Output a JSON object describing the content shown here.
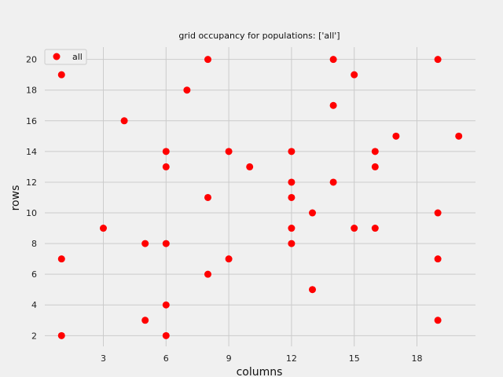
{
  "chart_data": {
    "type": "scatter",
    "title": "grid occupancy for populations: ['all']",
    "xlabel": "columns",
    "ylabel": "rows",
    "xlim": [
      0.2,
      20.8
    ],
    "ylim": [
      1.3,
      20.8
    ],
    "xticks": [
      3,
      6,
      9,
      12,
      15,
      18
    ],
    "yticks": [
      2,
      4,
      6,
      8,
      10,
      12,
      14,
      16,
      18,
      20
    ],
    "grid": true,
    "legend_position": "top-left",
    "series": [
      {
        "name": "all",
        "color": "#ff0000",
        "points": [
          [
            1,
            19
          ],
          [
            8,
            20
          ],
          [
            14,
            20
          ],
          [
            19,
            20
          ],
          [
            15,
            19
          ],
          [
            7,
            18
          ],
          [
            14,
            17
          ],
          [
            4,
            16
          ],
          [
            17,
            15
          ],
          [
            20,
            15
          ],
          [
            6,
            14
          ],
          [
            9,
            14
          ],
          [
            12,
            14
          ],
          [
            16,
            14
          ],
          [
            6,
            13
          ],
          [
            10,
            13
          ],
          [
            16,
            13
          ],
          [
            12,
            12
          ],
          [
            14,
            12
          ],
          [
            8,
            11
          ],
          [
            12,
            11
          ],
          [
            13,
            10
          ],
          [
            19,
            10
          ],
          [
            3,
            9
          ],
          [
            12,
            9
          ],
          [
            15,
            9
          ],
          [
            16,
            9
          ],
          [
            5,
            8
          ],
          [
            6,
            8
          ],
          [
            12,
            8
          ],
          [
            1,
            7
          ],
          [
            9,
            7
          ],
          [
            19,
            7
          ],
          [
            8,
            6
          ],
          [
            13,
            5
          ],
          [
            6,
            4
          ],
          [
            5,
            3
          ],
          [
            19,
            3
          ],
          [
            1,
            2
          ],
          [
            6,
            2
          ]
        ]
      }
    ]
  }
}
